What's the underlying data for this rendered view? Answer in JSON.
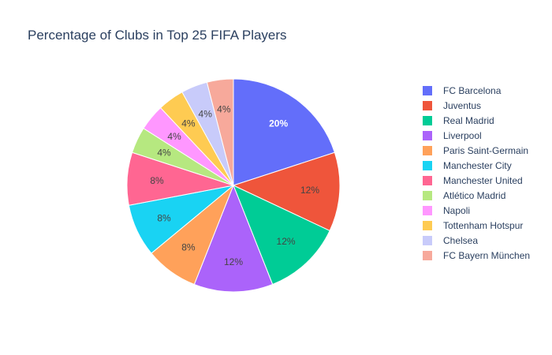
{
  "chart_data": {
    "type": "pie",
    "title": "Percentage of Clubs in Top 25 FIFA Players",
    "categories": [
      "FC Barcelona",
      "Juventus",
      "Real Madrid",
      "Liverpool",
      "Paris Saint-Germain",
      "Manchester City",
      "Manchester United",
      "Atlético Madrid",
      "Napoli",
      "Tottenham Hotspur",
      "Chelsea",
      "FC Bayern München"
    ],
    "values": [
      5,
      3,
      3,
      3,
      2,
      2,
      2,
      1,
      1,
      1,
      1,
      1
    ],
    "percent_labels": [
      "20%",
      "12%",
      "12%",
      "12%",
      "8%",
      "8%",
      "8%",
      "4%",
      "4%",
      "4%",
      "4%",
      "4%"
    ],
    "colors": [
      "#636efa",
      "#EF553B",
      "#00cc96",
      "#ab63fa",
      "#FFA15A",
      "#19d3f3",
      "#FF6692",
      "#B6E880",
      "#FF97FF",
      "#FECB52",
      "#c8cbfa",
      "#f7a99b"
    ],
    "label_colors": [
      "#ffffff",
      "#444444",
      "#444444",
      "#444444",
      "#444444",
      "#444444",
      "#444444",
      "#444444",
      "#444444",
      "#444444",
      "#444444",
      "#444444"
    ],
    "legend_order": [
      0,
      1,
      2,
      3,
      4,
      5,
      6,
      7,
      8,
      9,
      10,
      11
    ],
    "legend_placement": "right"
  }
}
